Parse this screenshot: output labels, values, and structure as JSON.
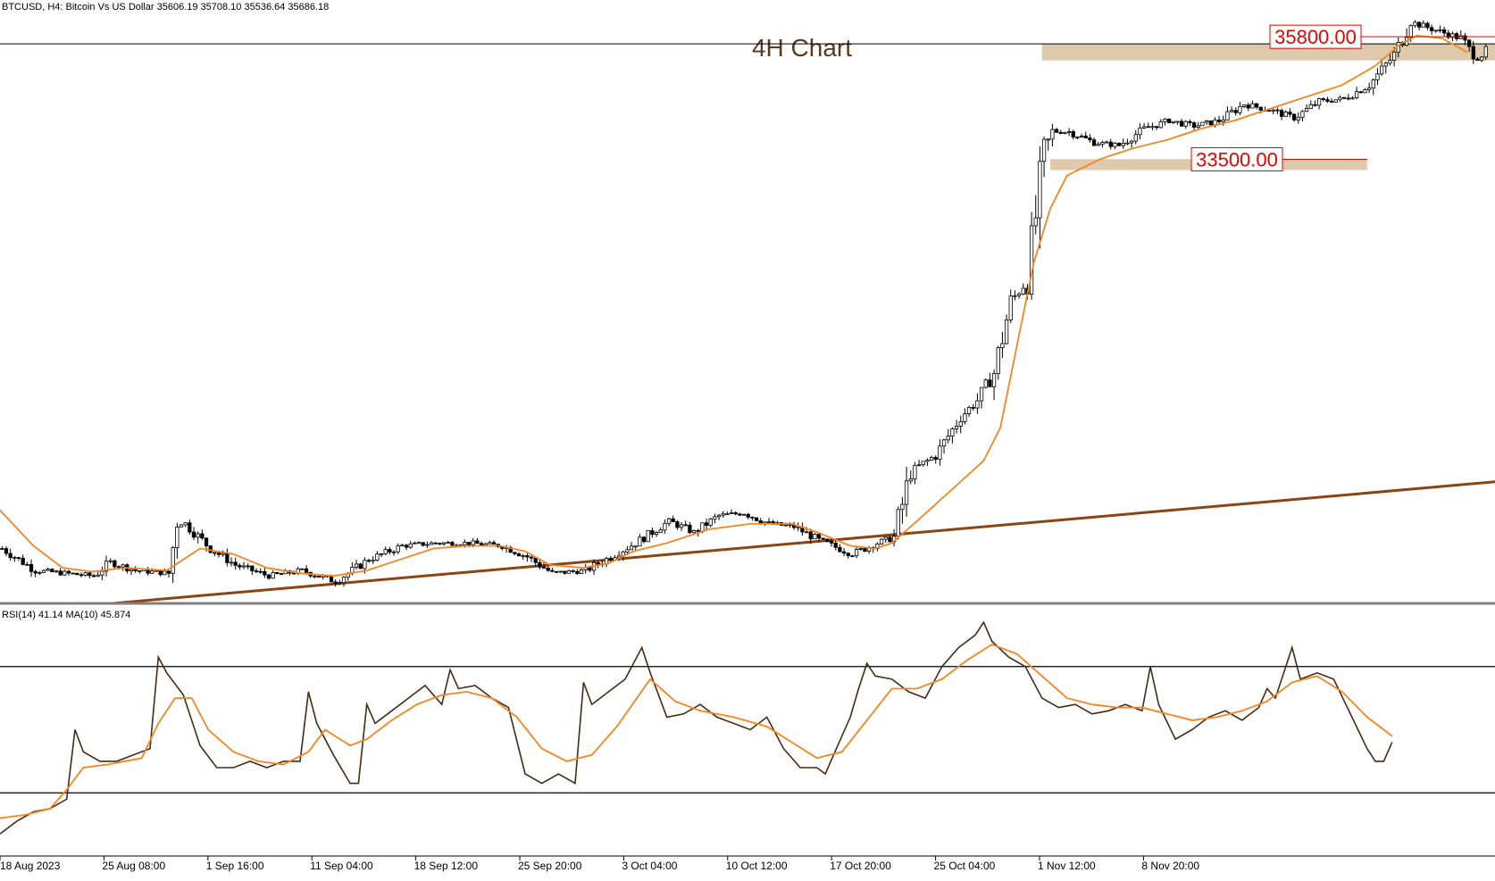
{
  "header": {
    "symbol_info": "BTCUSD, H4:  Bitcoin Vs US Dollar  35606.19 35708.10 35536.64 35686.18",
    "chart_title": "4H Chart"
  },
  "colors": {
    "candle": "#000000",
    "moving_average": "#f5861f",
    "trendline": "#8b4513",
    "zone_fill": "#d9bf9f",
    "level_label": "#e10600",
    "rsi_line": "#4a2a12",
    "rsi_ma": "#f5861f"
  },
  "chart_data": [
    {
      "type": "candlestick",
      "timeframe": "H4",
      "title": "4H Chart",
      "y_range": [
        25600,
        36600
      ],
      "x_ticks": [
        "18 Aug 2023",
        "25 Aug 08:00",
        "1 Sep 16:00",
        "11 Sep 04:00",
        "18 Sep 12:00",
        "25 Sep 20:00",
        "3 Oct 04:00",
        "10 Oct 12:00",
        "17 Oct 20:00",
        "25 Oct 04:00",
        "1 Nov 12:00",
        "8 Nov 20:00"
      ],
      "price_path": [
        [
          0,
          26600
        ],
        [
          8,
          26200
        ],
        [
          15,
          26150
        ],
        [
          22,
          26100
        ],
        [
          26,
          26350
        ],
        [
          32,
          26200
        ],
        [
          40,
          26150
        ],
        [
          42,
          27100
        ],
        [
          44,
          27050
        ],
        [
          50,
          26600
        ],
        [
          56,
          26300
        ],
        [
          64,
          26100
        ],
        [
          72,
          26200
        ],
        [
          80,
          26000
        ],
        [
          88,
          26400
        ],
        [
          96,
          26650
        ],
        [
          104,
          26700
        ],
        [
          112,
          26700
        ],
        [
          120,
          26650
        ],
        [
          126,
          26450
        ],
        [
          132,
          26150
        ],
        [
          140,
          26200
        ],
        [
          146,
          26450
        ],
        [
          152,
          26700
        ],
        [
          156,
          26900
        ],
        [
          160,
          27100
        ],
        [
          166,
          26900
        ],
        [
          172,
          27200
        ],
        [
          178,
          27250
        ],
        [
          184,
          27050
        ],
        [
          190,
          27000
        ],
        [
          196,
          26750
        ],
        [
          204,
          26500
        ],
        [
          210,
          26700
        ],
        [
          214,
          26800
        ],
        [
          218,
          28000
        ],
        [
          224,
          28300
        ],
        [
          230,
          29000
        ],
        [
          234,
          29300
        ],
        [
          238,
          29800
        ],
        [
          242,
          31100
        ],
        [
          246,
          31500
        ],
        [
          250,
          33800
        ],
        [
          252,
          34200
        ],
        [
          256,
          34200
        ],
        [
          262,
          34000
        ],
        [
          268,
          33950
        ],
        [
          274,
          34250
        ],
        [
          280,
          34400
        ],
        [
          286,
          34300
        ],
        [
          292,
          34400
        ],
        [
          298,
          34700
        ],
        [
          304,
          34600
        ],
        [
          310,
          34450
        ],
        [
          316,
          34750
        ],
        [
          322,
          34800
        ],
        [
          328,
          35050
        ],
        [
          334,
          35600
        ],
        [
          338,
          36200
        ],
        [
          342,
          36100
        ],
        [
          346,
          36000
        ],
        [
          350,
          35900
        ],
        [
          352,
          35700
        ],
        [
          354,
          35540
        ],
        [
          356,
          35686
        ]
      ],
      "moving_average_path": [
        [
          0,
          27300
        ],
        [
          8,
          26650
        ],
        [
          15,
          26250
        ],
        [
          22,
          26180
        ],
        [
          30,
          26250
        ],
        [
          40,
          26200
        ],
        [
          48,
          26600
        ],
        [
          56,
          26500
        ],
        [
          64,
          26250
        ],
        [
          72,
          26150
        ],
        [
          80,
          26100
        ],
        [
          88,
          26200
        ],
        [
          96,
          26400
        ],
        [
          104,
          26600
        ],
        [
          112,
          26650
        ],
        [
          120,
          26650
        ],
        [
          126,
          26550
        ],
        [
          132,
          26300
        ],
        [
          140,
          26250
        ],
        [
          146,
          26330
        ],
        [
          152,
          26550
        ],
        [
          160,
          26700
        ],
        [
          170,
          26950
        ],
        [
          180,
          27050
        ],
        [
          190,
          27050
        ],
        [
          196,
          26900
        ],
        [
          204,
          26650
        ],
        [
          210,
          26600
        ],
        [
          214,
          26700
        ],
        [
          220,
          27100
        ],
        [
          228,
          27650
        ],
        [
          236,
          28200
        ],
        [
          240,
          28800
        ],
        [
          244,
          30300
        ],
        [
          248,
          31800
        ],
        [
          252,
          32800
        ],
        [
          256,
          33400
        ],
        [
          264,
          33700
        ],
        [
          272,
          33900
        ],
        [
          280,
          34050
        ],
        [
          288,
          34250
        ],
        [
          296,
          34400
        ],
        [
          304,
          34600
        ],
        [
          312,
          34800
        ],
        [
          322,
          35050
        ],
        [
          330,
          35400
        ],
        [
          336,
          35800
        ],
        [
          340,
          35950
        ],
        [
          346,
          35900
        ],
        [
          352,
          35650
        ]
      ],
      "horizontal_line": 35800,
      "zones": [
        {
          "from_bar": 250,
          "to_bar": 360,
          "low": 35500,
          "high": 35800
        },
        {
          "from_bar": 252,
          "to_bar": 328,
          "low": 33500,
          "high": 33700
        }
      ],
      "level_labels": [
        "35800.00",
        "33500.00"
      ],
      "trendline": {
        "start": [
          27,
          25600
        ],
        "end": [
          386,
          28000
        ]
      }
    },
    {
      "type": "line",
      "indicator_label": "RSI(14) 41.14 MA(10) 45.874",
      "y_range": [
        10,
        90
      ],
      "levels": [
        70,
        30
      ],
      "series": [
        {
          "values": [
            [
              0,
              17
            ],
            [
              4,
              21
            ],
            [
              8,
              24
            ],
            [
              12,
              25
            ],
            [
              16,
              28
            ],
            [
              18,
              50
            ],
            [
              20,
              43
            ],
            [
              24,
              40
            ],
            [
              28,
              40
            ],
            [
              32,
              42
            ],
            [
              36,
              44
            ],
            [
              38,
              73
            ],
            [
              40,
              68
            ],
            [
              44,
              61
            ],
            [
              48,
              45
            ],
            [
              52,
              38
            ],
            [
              56,
              38
            ],
            [
              60,
              40
            ],
            [
              64,
              38
            ],
            [
              68,
              40
            ],
            [
              72,
              40
            ],
            [
              74,
              62
            ],
            [
              76,
              52
            ],
            [
              80,
              42
            ],
            [
              84,
              33
            ],
            [
              86,
              33
            ],
            [
              88,
              58
            ],
            [
              90,
              52
            ],
            [
              94,
              56
            ],
            [
              98,
              60
            ],
            [
              102,
              64
            ],
            [
              106,
              58
            ],
            [
              108,
              69
            ],
            [
              110,
              63
            ],
            [
              114,
              64
            ],
            [
              118,
              60
            ],
            [
              122,
              57
            ],
            [
              126,
              36
            ],
            [
              130,
              33
            ],
            [
              134,
              36
            ],
            [
              138,
              33
            ],
            [
              140,
              65
            ],
            [
              142,
              58
            ],
            [
              146,
              62
            ],
            [
              150,
              66
            ],
            [
              154,
              76
            ],
            [
              156,
              68
            ],
            [
              160,
              54
            ],
            [
              164,
              55
            ],
            [
              168,
              58
            ],
            [
              172,
              54
            ],
            [
              176,
              52
            ],
            [
              180,
              50
            ],
            [
              184,
              54
            ],
            [
              188,
              44
            ],
            [
              192,
              38
            ],
            [
              196,
              38
            ],
            [
              198,
              36
            ],
            [
              200,
              42
            ],
            [
              204,
              54
            ],
            [
              206,
              63
            ],
            [
              208,
              71
            ],
            [
              210,
              67
            ],
            [
              214,
              66
            ],
            [
              218,
              62
            ],
            [
              222,
              60
            ],
            [
              226,
              70
            ],
            [
              230,
              76
            ],
            [
              234,
              80
            ],
            [
              236,
              84
            ],
            [
              238,
              78
            ],
            [
              242,
              73
            ],
            [
              246,
              70
            ],
            [
              250,
              60
            ],
            [
              254,
              57
            ],
            [
              258,
              58
            ],
            [
              262,
              55
            ],
            [
              266,
              56
            ],
            [
              270,
              58
            ],
            [
              274,
              56
            ],
            [
              276,
              70
            ],
            [
              278,
              58
            ],
            [
              282,
              47
            ],
            [
              286,
              50
            ],
            [
              290,
              54
            ],
            [
              294,
              56
            ],
            [
              298,
              53
            ],
            [
              302,
              57
            ],
            [
              304,
              63
            ],
            [
              306,
              60
            ],
            [
              310,
              76
            ],
            [
              312,
              66
            ],
            [
              316,
              68
            ],
            [
              320,
              66
            ],
            [
              324,
              55
            ],
            [
              328,
              44
            ],
            [
              330,
              40
            ],
            [
              332,
              40
            ],
            [
              334,
              46
            ]
          ]
        },
        {
          "values": [
            [
              0,
              22
            ],
            [
              6,
              23
            ],
            [
              12,
              25
            ],
            [
              16,
              31
            ],
            [
              20,
              38
            ],
            [
              26,
              39
            ],
            [
              34,
              41
            ],
            [
              38,
              52
            ],
            [
              42,
              60
            ],
            [
              46,
              60
            ],
            [
              50,
              50
            ],
            [
              56,
              43
            ],
            [
              62,
              40
            ],
            [
              68,
              39
            ],
            [
              74,
              43
            ],
            [
              78,
              50
            ],
            [
              84,
              45
            ],
            [
              88,
              47
            ],
            [
              94,
              53
            ],
            [
              100,
              58
            ],
            [
              106,
              61
            ],
            [
              112,
              62
            ],
            [
              118,
              60
            ],
            [
              124,
              54
            ],
            [
              130,
              44
            ],
            [
              136,
              40
            ],
            [
              142,
              42
            ],
            [
              148,
              51
            ],
            [
              156,
              66
            ],
            [
              162,
              59
            ],
            [
              168,
              56
            ],
            [
              176,
              54
            ],
            [
              184,
              51
            ],
            [
              190,
              46
            ],
            [
              196,
              41
            ],
            [
              202,
              43
            ],
            [
              208,
              53
            ],
            [
              214,
              63
            ],
            [
              220,
              63
            ],
            [
              226,
              66
            ],
            [
              232,
              72
            ],
            [
              238,
              77
            ],
            [
              244,
              74
            ],
            [
              250,
              67
            ],
            [
              256,
              60
            ],
            [
              262,
              58
            ],
            [
              268,
              57
            ],
            [
              274,
              57
            ],
            [
              280,
              55
            ],
            [
              286,
              53
            ],
            [
              292,
              54
            ],
            [
              298,
              56
            ],
            [
              304,
              59
            ],
            [
              310,
              65
            ],
            [
              316,
              67
            ],
            [
              322,
              62
            ],
            [
              328,
              54
            ],
            [
              334,
              48
            ]
          ]
        }
      ]
    }
  ]
}
